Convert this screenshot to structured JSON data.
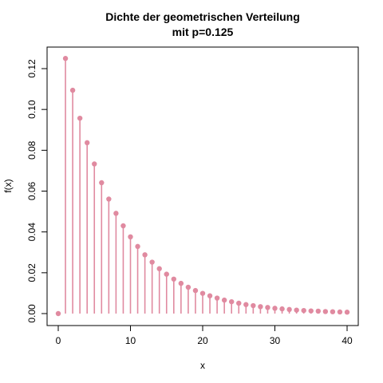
{
  "chart_data": {
    "type": "scatter",
    "style": "lollipop",
    "title_line1": "Dichte der geometrischen Verteilung",
    "title_line2": "mit p=0.125",
    "xlabel": "x",
    "ylabel": "f(x)",
    "xlim": [
      0,
      40
    ],
    "ylim": [
      0,
      0.125
    ],
    "x_ticks": [
      0,
      10,
      20,
      30,
      40
    ],
    "y_ticks": [
      0.0,
      0.02,
      0.04,
      0.06,
      0.08,
      0.1,
      0.12
    ],
    "x_tick_labels": [
      "0",
      "10",
      "20",
      "30",
      "40"
    ],
    "y_tick_labels": [
      "0.00",
      "0.02",
      "0.04",
      "0.06",
      "0.08",
      "0.10",
      "0.12"
    ],
    "grid": false,
    "legend": "none",
    "color": "#e08aa0",
    "p": 0.125,
    "x": [
      0,
      1,
      2,
      3,
      4,
      5,
      6,
      7,
      8,
      9,
      10,
      11,
      12,
      13,
      14,
      15,
      16,
      17,
      18,
      19,
      20,
      21,
      22,
      23,
      24,
      25,
      26,
      27,
      28,
      29,
      30,
      31,
      32,
      33,
      34,
      35,
      36,
      37,
      38,
      39,
      40
    ],
    "y": [
      0.0,
      0.125,
      0.1094,
      0.0957,
      0.0837,
      0.0733,
      0.0641,
      0.0561,
      0.0491,
      0.043,
      0.0376,
      0.0329,
      0.0288,
      0.0252,
      0.022,
      0.0193,
      0.0169,
      0.0148,
      0.0129,
      0.0113,
      0.0099,
      0.0087,
      0.0076,
      0.0066,
      0.0058,
      0.0051,
      0.0044,
      0.0039,
      0.0034,
      0.003,
      0.0026,
      0.0023,
      0.002,
      0.0017,
      0.0015,
      0.0013,
      0.0012,
      0.001,
      0.0009,
      0.0008,
      0.0007
    ]
  }
}
